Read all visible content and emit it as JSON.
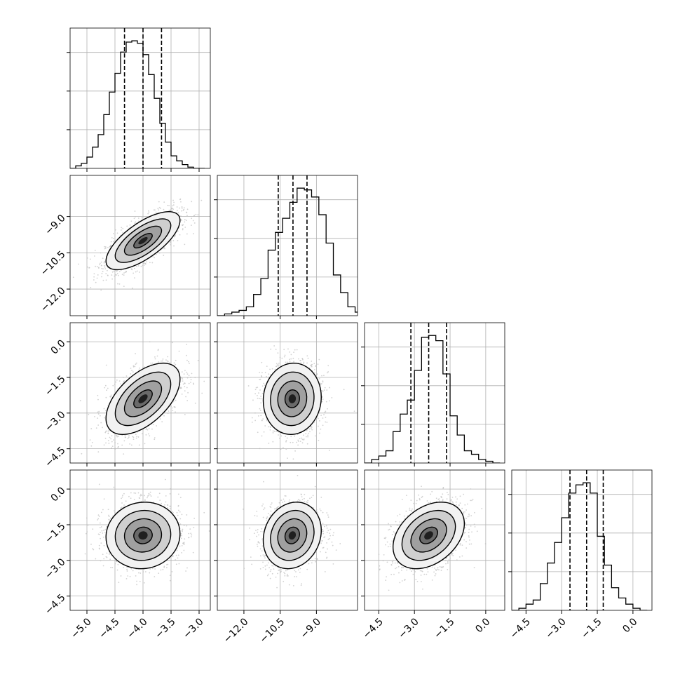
{
  "chart_data": {
    "type": "corner",
    "n_params": 4,
    "grid": true,
    "histograms": [
      {
        "param_index": 0,
        "bin_edges": [
          -5.3,
          -5.2,
          -5.1,
          -5.0,
          -4.9,
          -4.8,
          -4.7,
          -4.6,
          -4.5,
          -4.4,
          -4.3,
          -4.2,
          -4.1,
          -4.0,
          -3.9,
          -3.8,
          -3.7,
          -3.6,
          -3.5,
          -3.4,
          -3.3,
          -3.2,
          -3.1,
          -3.0,
          -2.9
        ],
        "counts": [
          0,
          2,
          4,
          9,
          17,
          27,
          43,
          61,
          76,
          93,
          101,
          102,
          100,
          91,
          75,
          56,
          36,
          21,
          10,
          6,
          3,
          1,
          0,
          0
        ],
        "quantiles": [
          -4.33,
          -4.0,
          -3.67
        ]
      },
      {
        "param_index": 1,
        "bin_edges": [
          -13.1,
          -12.8,
          -12.5,
          -12.2,
          -11.9,
          -11.6,
          -11.3,
          -11.0,
          -10.7,
          -10.4,
          -10.1,
          -9.8,
          -9.5,
          -9.2,
          -8.9,
          -8.6,
          -8.3,
          -8.0,
          -7.7,
          -7.4,
          -7.1,
          -6.8
        ],
        "counts": [
          0,
          1,
          2,
          3,
          5,
          12,
          21,
          37,
          47,
          55,
          64,
          72,
          71,
          67,
          57,
          41,
          23,
          13,
          5,
          2,
          0
        ],
        "quantiles": [
          -10.58,
          -9.97,
          -9.39
        ]
      },
      {
        "param_index": 2,
        "bin_edges": [
          -5.1,
          -4.8,
          -4.5,
          -4.2,
          -3.9,
          -3.6,
          -3.3,
          -3.0,
          -2.7,
          -2.4,
          -2.1,
          -1.8,
          -1.5,
          -1.2,
          -0.9,
          -0.6,
          -0.3,
          0.0,
          0.3,
          0.6
        ],
        "counts": [
          0,
          2,
          4,
          7,
          18,
          28,
          36,
          53,
          72,
          73,
          70,
          51,
          27,
          16,
          7,
          5,
          2,
          1,
          0
        ],
        "quantiles": [
          -3.15,
          -2.4,
          -1.65
        ]
      },
      {
        "param_index": 3,
        "bin_edges": [
          -5.1,
          -4.8,
          -4.5,
          -4.2,
          -3.9,
          -3.6,
          -3.3,
          -3.0,
          -2.7,
          -2.4,
          -2.1,
          -1.8,
          -1.5,
          -1.2,
          -0.9,
          -0.6,
          -0.3,
          0.0,
          0.3,
          0.6
        ],
        "counts": [
          0,
          1,
          3,
          5,
          13,
          23,
          33,
          45,
          57,
          61,
          62,
          57,
          36,
          22,
          11,
          6,
          3,
          1,
          0
        ],
        "quantiles": [
          -2.65,
          -1.95,
          -1.25
        ]
      }
    ],
    "pairs": [
      {
        "x_param": 0,
        "y_param": 1,
        "x_mean": -4.0,
        "y_mean": -10.0,
        "x_sd": 0.33,
        "y_sd": 0.6,
        "rho": 0.7
      },
      {
        "x_param": 0,
        "y_param": 2,
        "x_mean": -4.0,
        "y_mean": -2.4,
        "x_sd": 0.33,
        "y_sd": 0.75,
        "rho": 0.55
      },
      {
        "x_param": 1,
        "y_param": 2,
        "x_mean": -10.0,
        "y_mean": -2.4,
        "x_sd": 0.6,
        "y_sd": 0.75,
        "rho": 0.05
      },
      {
        "x_param": 0,
        "y_param": 3,
        "x_mean": -4.0,
        "y_mean": -1.95,
        "x_sd": 0.33,
        "y_sd": 0.7,
        "rho": 0.05
      },
      {
        "x_param": 1,
        "y_param": 3,
        "x_mean": -10.0,
        "y_mean": -1.95,
        "x_sd": 0.6,
        "y_sd": 0.7,
        "rho": 0.15
      },
      {
        "x_param": 2,
        "y_param": 3,
        "x_mean": -2.4,
        "y_mean": -1.95,
        "x_sd": 0.75,
        "y_sd": 0.7,
        "rho": 0.35
      }
    ],
    "contour_levels_sigma": [
      0.5,
      1.0,
      1.5,
      2.0
    ],
    "axes": [
      {
        "param_index": 0,
        "xlim": [
          -5.3,
          -2.8
        ],
        "ylim": null,
        "ticks": [
          -5.0,
          -4.5,
          -4.0,
          -3.5,
          -3.0
        ],
        "tick_labels": [
          "−5.0",
          "−4.5",
          "−4.0",
          "−3.5",
          "−3.0"
        ]
      },
      {
        "param_index": 1,
        "xlim": [
          -13.1,
          -7.3
        ],
        "ylim": [
          -13.1,
          -7.3
        ],
        "ticks": [
          -12.0,
          -10.5,
          -9.0
        ],
        "tick_labels": [
          "−12.0",
          "−10.5",
          "−9.0"
        ]
      },
      {
        "param_index": 2,
        "xlim": [
          -5.1,
          0.8
        ],
        "ylim": [
          -5.1,
          0.8
        ],
        "ticks": [
          -4.5,
          -3.0,
          -1.5,
          0.0
        ],
        "tick_labels": [
          "−4.5",
          "−3.0",
          "−1.5",
          "0.0"
        ]
      },
      {
        "param_index": 3,
        "xlim": [
          -5.1,
          0.8
        ],
        "ylim": [
          -5.1,
          0.8
        ],
        "ticks": [
          -4.5,
          -3.0,
          -1.5,
          0.0
        ],
        "tick_labels": [
          "−4.5",
          "−3.0",
          "−1.5",
          "0.0"
        ]
      }
    ],
    "scatter_color": "#bfbfbf",
    "line_color": "#000000",
    "grid_color": "#b0b0b0"
  }
}
